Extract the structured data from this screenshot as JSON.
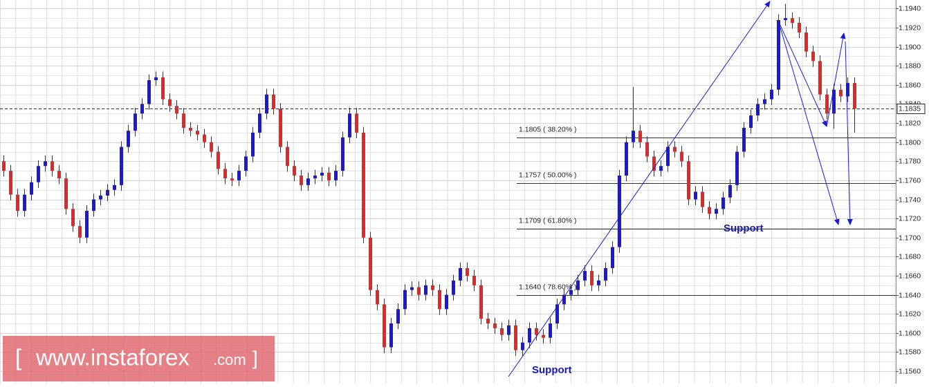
{
  "chart_data": {
    "type": "candlestick",
    "ohlc": [
      [
        1.178,
        1.1786,
        1.1764,
        1.177
      ],
      [
        1.177,
        1.1776,
        1.1739,
        1.1745
      ],
      [
        1.1745,
        1.1751,
        1.1722,
        1.1728
      ],
      [
        1.1728,
        1.1751,
        1.1722,
        1.1745
      ],
      [
        1.1745,
        1.1764,
        1.1739,
        1.1758
      ],
      [
        1.1758,
        1.1781,
        1.1752,
        1.1775
      ],
      [
        1.1775,
        1.1786,
        1.1769,
        1.178
      ],
      [
        1.178,
        1.1786,
        1.1764,
        1.177
      ],
      [
        1.177,
        1.1776,
        1.1756,
        1.1762
      ],
      [
        1.1762,
        1.1768,
        1.1724,
        1.173
      ],
      [
        1.173,
        1.1736,
        1.1706,
        1.1712
      ],
      [
        1.1712,
        1.1718,
        1.1694,
        1.17
      ],
      [
        1.17,
        1.1734,
        1.1694,
        1.1728
      ],
      [
        1.1728,
        1.1746,
        1.1722,
        1.174
      ],
      [
        1.174,
        1.175,
        1.1734,
        1.1744
      ],
      [
        1.1744,
        1.1756,
        1.1738,
        1.175
      ],
      [
        1.175,
        1.1761,
        1.1744,
        1.1755
      ],
      [
        1.1755,
        1.1801,
        1.1749,
        1.1795
      ],
      [
        1.1795,
        1.1818,
        1.1789,
        1.1812
      ],
      [
        1.1812,
        1.1836,
        1.1806,
        1.183
      ],
      [
        1.183,
        1.1846,
        1.1824,
        1.184
      ],
      [
        1.184,
        1.1871,
        1.1834,
        1.1865
      ],
      [
        1.1865,
        1.1874,
        1.1859,
        1.1868
      ],
      [
        1.1868,
        1.1874,
        1.1839,
        1.1845
      ],
      [
        1.1845,
        1.1851,
        1.1832,
        1.1838
      ],
      [
        1.1838,
        1.1844,
        1.1824,
        1.183
      ],
      [
        1.183,
        1.1836,
        1.1809,
        1.1815
      ],
      [
        1.1815,
        1.1821,
        1.1806,
        1.1812
      ],
      [
        1.1812,
        1.1818,
        1.1802,
        1.1808
      ],
      [
        1.1808,
        1.1814,
        1.1794,
        1.18
      ],
      [
        1.18,
        1.1806,
        1.1784,
        1.179
      ],
      [
        1.179,
        1.1796,
        1.1766,
        1.1772
      ],
      [
        1.1772,
        1.1778,
        1.1756,
        1.1762
      ],
      [
        1.1762,
        1.1768,
        1.1754,
        1.176
      ],
      [
        1.176,
        1.1776,
        1.1754,
        1.177
      ],
      [
        1.177,
        1.1791,
        1.1764,
        1.1785
      ],
      [
        1.1785,
        1.1816,
        1.1779,
        1.181
      ],
      [
        1.181,
        1.1836,
        1.1804,
        1.183
      ],
      [
        1.183,
        1.1856,
        1.1824,
        1.185
      ],
      [
        1.185,
        1.1856,
        1.1829,
        1.1835
      ],
      [
        1.1835,
        1.1841,
        1.1789,
        1.1795
      ],
      [
        1.1795,
        1.1801,
        1.1769,
        1.1775
      ],
      [
        1.1775,
        1.1781,
        1.1759,
        1.1765
      ],
      [
        1.1765,
        1.1771,
        1.1749,
        1.1755
      ],
      [
        1.1755,
        1.1768,
        1.1749,
        1.1762
      ],
      [
        1.1762,
        1.1771,
        1.1756,
        1.1765
      ],
      [
        1.1765,
        1.1774,
        1.1759,
        1.1768
      ],
      [
        1.1768,
        1.1774,
        1.1754,
        1.176
      ],
      [
        1.176,
        1.1776,
        1.1754,
        1.177
      ],
      [
        1.177,
        1.1811,
        1.1764,
        1.1805
      ],
      [
        1.1805,
        1.1836,
        1.1799,
        1.183
      ],
      [
        1.183,
        1.1836,
        1.1804,
        1.181
      ],
      [
        1.181,
        1.1816,
        1.1694,
        1.17
      ],
      [
        1.17,
        1.1706,
        1.1639,
        1.1645
      ],
      [
        1.1645,
        1.1651,
        1.1624,
        1.163
      ],
      [
        1.163,
        1.1636,
        1.1579,
        1.1585
      ],
      [
        1.1585,
        1.1616,
        1.1579,
        1.161
      ],
      [
        1.161,
        1.1631,
        1.1604,
        1.1625
      ],
      [
        1.1625,
        1.1651,
        1.1619,
        1.1645
      ],
      [
        1.1645,
        1.1654,
        1.1639,
        1.1648
      ],
      [
        1.1648,
        1.1654,
        1.1634,
        1.164
      ],
      [
        1.164,
        1.1656,
        1.1634,
        1.165
      ],
      [
        1.165,
        1.1656,
        1.1639,
        1.1645
      ],
      [
        1.1645,
        1.1651,
        1.1619,
        1.1625
      ],
      [
        1.1625,
        1.1646,
        1.1619,
        1.164
      ],
      [
        1.164,
        1.1661,
        1.1634,
        1.1655
      ],
      [
        1.1655,
        1.1674,
        1.1649,
        1.1668
      ],
      [
        1.1668,
        1.1674,
        1.1654,
        1.166
      ],
      [
        1.166,
        1.1666,
        1.1644,
        1.165
      ],
      [
        1.165,
        1.1656,
        1.1609,
        1.1615
      ],
      [
        1.1615,
        1.1621,
        1.1604,
        1.161
      ],
      [
        1.161,
        1.1616,
        1.1599,
        1.1605
      ],
      [
        1.1605,
        1.1611,
        1.1592,
        1.1598
      ],
      [
        1.1598,
        1.1614,
        1.1592,
        1.1608
      ],
      [
        1.1608,
        1.1614,
        1.1576,
        1.1582
      ],
      [
        1.1582,
        1.1596,
        1.1576,
        1.159
      ],
      [
        1.159,
        1.1611,
        1.1584,
        1.1605
      ],
      [
        1.1605,
        1.1611,
        1.1592,
        1.1598
      ],
      [
        1.1598,
        1.1604,
        1.1589,
        1.1595
      ],
      [
        1.1595,
        1.1616,
        1.1589,
        1.161
      ],
      [
        1.161,
        1.1636,
        1.1604,
        1.163
      ],
      [
        1.163,
        1.1646,
        1.1624,
        1.164
      ],
      [
        1.164,
        1.1651,
        1.1634,
        1.1645
      ],
      [
        1.1645,
        1.1661,
        1.1639,
        1.1655
      ],
      [
        1.1655,
        1.1671,
        1.1649,
        1.1665
      ],
      [
        1.1665,
        1.1671,
        1.1644,
        1.165
      ],
      [
        1.165,
        1.1661,
        1.1644,
        1.1655
      ],
      [
        1.1655,
        1.1674,
        1.1649,
        1.1668
      ],
      [
        1.1668,
        1.1696,
        1.1662,
        1.169
      ],
      [
        1.169,
        1.1771,
        1.1684,
        1.1765
      ],
      [
        1.1765,
        1.1806,
        1.1759,
        1.18
      ],
      [
        1.18,
        1.1858,
        1.1794,
        1.1812
      ],
      [
        1.1812,
        1.1818,
        1.1794,
        1.18
      ],
      [
        1.18,
        1.1806,
        1.1779,
        1.1785
      ],
      [
        1.1785,
        1.1791,
        1.1764,
        1.177
      ],
      [
        1.177,
        1.1781,
        1.1764,
        1.1775
      ],
      [
        1.1775,
        1.1801,
        1.1769,
        1.1795
      ],
      [
        1.1795,
        1.1801,
        1.1784,
        1.179
      ],
      [
        1.179,
        1.1796,
        1.1774,
        1.178
      ],
      [
        1.178,
        1.1786,
        1.1734,
        1.174
      ],
      [
        1.174,
        1.1754,
        1.1734,
        1.1748
      ],
      [
        1.1748,
        1.1754,
        1.1726,
        1.1732
      ],
      [
        1.1732,
        1.1738,
        1.1719,
        1.1725
      ],
      [
        1.1725,
        1.1736,
        1.1719,
        1.173
      ],
      [
        1.173,
        1.1748,
        1.1724,
        1.1742
      ],
      [
        1.1742,
        1.1761,
        1.1736,
        1.1755
      ],
      [
        1.1755,
        1.1796,
        1.1749,
        1.179
      ],
      [
        1.179,
        1.1821,
        1.1784,
        1.1815
      ],
      [
        1.1815,
        1.1834,
        1.1809,
        1.1828
      ],
      [
        1.1828,
        1.1846,
        1.1822,
        1.184
      ],
      [
        1.184,
        1.1851,
        1.1834,
        1.1845
      ],
      [
        1.1845,
        1.1861,
        1.1839,
        1.1855
      ],
      [
        1.1855,
        1.1934,
        1.1849,
        1.1928
      ],
      [
        1.1928,
        1.1945,
        1.1922,
        1.193
      ],
      [
        1.193,
        1.1936,
        1.1919,
        1.1925
      ],
      [
        1.1925,
        1.1931,
        1.1909,
        1.1915
      ],
      [
        1.1915,
        1.1921,
        1.1889,
        1.1895
      ],
      [
        1.1895,
        1.1901,
        1.1879,
        1.1885
      ],
      [
        1.1885,
        1.1891,
        1.1844,
        1.185
      ],
      [
        1.185,
        1.1856,
        1.1824,
        1.183
      ],
      [
        1.183,
        1.1861,
        1.1814,
        1.1855
      ],
      [
        1.1855,
        1.1861,
        1.1842,
        1.1848
      ],
      [
        1.1848,
        1.1868,
        1.1842,
        1.1862
      ],
      [
        1.1862,
        1.1868,
        1.181,
        1.1835
      ]
    ],
    "up_color": "#1a1ad4",
    "down_color": "#e02828",
    "ylim": [
      1.1547,
      1.1949
    ],
    "yticks": [
      {
        "value": 1.156,
        "label": "1.1560"
      },
      {
        "value": 1.158,
        "label": "1.1580"
      },
      {
        "value": 1.16,
        "label": "1.1600"
      },
      {
        "value": 1.162,
        "label": "1.1620"
      },
      {
        "value": 1.164,
        "label": "1.1640"
      },
      {
        "value": 1.166,
        "label": "1.1660"
      },
      {
        "value": 1.168,
        "label": "1.1680"
      },
      {
        "value": 1.17,
        "label": "1.1700"
      },
      {
        "value": 1.172,
        "label": "1.1720"
      },
      {
        "value": 1.174,
        "label": "1.1740"
      },
      {
        "value": 1.176,
        "label": "1.1760"
      },
      {
        "value": 1.178,
        "label": "1.1780"
      },
      {
        "value": 1.18,
        "label": "1.1800"
      },
      {
        "value": 1.182,
        "label": "1.1820"
      },
      {
        "value": 1.184,
        "label": "1.1840"
      },
      {
        "value": 1.186,
        "label": "1.1860"
      },
      {
        "value": 1.188,
        "label": "1.1880"
      },
      {
        "value": 1.19,
        "label": "1.1900"
      },
      {
        "value": 1.192,
        "label": "1.1920"
      },
      {
        "value": 1.194,
        "label": "1.1940"
      }
    ],
    "grid": true,
    "current_price": {
      "value": 1.1835,
      "label": "1.1835"
    },
    "fib_levels": [
      {
        "value": 1.1805,
        "label": "1.1805 ( 38.20% )"
      },
      {
        "value": 1.1757,
        "label": "1.1757 ( 50.00% )"
      },
      {
        "value": 1.1709,
        "label": "1.1709 ( 61.80% )"
      },
      {
        "value": 1.164,
        "label": "1.1640 ( 78.60% )"
      }
    ],
    "annotations": [
      "Support",
      "Support"
    ],
    "watermark": [
      "[",
      "www.instaforex",
      ".com",
      "]"
    ]
  }
}
